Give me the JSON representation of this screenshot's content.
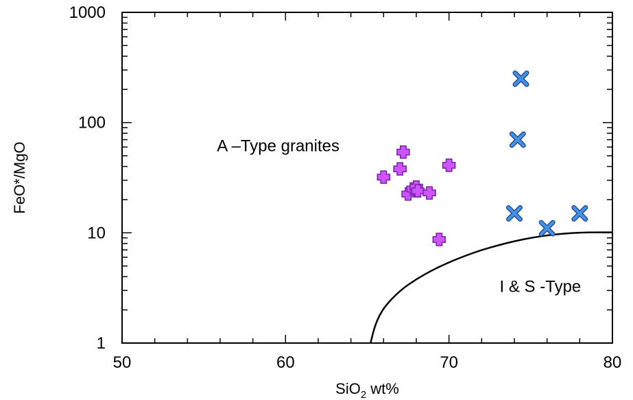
{
  "chart_data": {
    "type": "scatter",
    "title": "",
    "xlabel": {
      "main": "SiO",
      "subscript": "2",
      "suffix": " wt%"
    },
    "ylabel": "FeO*/MgO",
    "xlim": [
      50,
      80
    ],
    "ylim": [
      1,
      1000
    ],
    "y_scale": "log",
    "x_ticks": [
      "50",
      "60",
      "70",
      "80"
    ],
    "y_ticks": [
      "1",
      "10",
      "100",
      "1000"
    ],
    "grid": false,
    "legend": "none",
    "annotations": [
      {
        "text": "A –Type granites",
        "x": 55.8,
        "y": 55
      },
      {
        "text": "I & S -Type",
        "x": 73.1,
        "y": 2.9
      }
    ],
    "series": [
      {
        "marker": "plus",
        "color": "#cc55ff",
        "points": [
          {
            "x": 66.0,
            "y": 32
          },
          {
            "x": 67.0,
            "y": 38
          },
          {
            "x": 67.2,
            "y": 54
          },
          {
            "x": 67.5,
            "y": 22.5
          },
          {
            "x": 67.8,
            "y": 25
          },
          {
            "x": 68.0,
            "y": 26
          },
          {
            "x": 68.1,
            "y": 24
          },
          {
            "x": 68.8,
            "y": 23
          },
          {
            "x": 69.4,
            "y": 8.7
          },
          {
            "x": 70.0,
            "y": 41
          }
        ]
      },
      {
        "marker": "x",
        "color": "#4a90e2",
        "points": [
          {
            "x": 74.4,
            "y": 250
          },
          {
            "x": 74.2,
            "y": 70
          },
          {
            "x": 74.0,
            "y": 15
          },
          {
            "x": 76.0,
            "y": 11
          },
          {
            "x": 78.0,
            "y": 15
          }
        ]
      }
    ],
    "boundary_curve": [
      {
        "x": 65.2,
        "y": 1.0
      },
      {
        "x": 65.5,
        "y": 1.5
      },
      {
        "x": 66.0,
        "y": 2.1
      },
      {
        "x": 67.0,
        "y": 3.0
      },
      {
        "x": 68.0,
        "y": 3.8
      },
      {
        "x": 69.0,
        "y": 4.6
      },
      {
        "x": 70.0,
        "y": 5.4
      },
      {
        "x": 71.0,
        "y": 6.2
      },
      {
        "x": 72.0,
        "y": 7.0
      },
      {
        "x": 73.0,
        "y": 7.7
      },
      {
        "x": 74.0,
        "y": 8.4
      },
      {
        "x": 75.0,
        "y": 9.0
      },
      {
        "x": 76.0,
        "y": 9.5
      },
      {
        "x": 77.0,
        "y": 9.85
      },
      {
        "x": 78.0,
        "y": 10.05
      },
      {
        "x": 79.0,
        "y": 10.1
      },
      {
        "x": 80.0,
        "y": 10.1
      }
    ]
  }
}
